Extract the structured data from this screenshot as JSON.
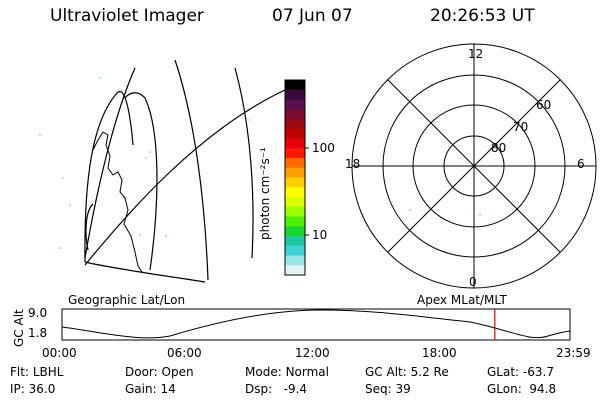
{
  "header": {
    "instrument": "Ultraviolet Imager",
    "date": "07 Jun 07",
    "time": "20:26:53 UT"
  },
  "colorbar": {
    "unit_label": "photon cm⁻²s⁻¹",
    "ticks": [
      "100",
      "10"
    ],
    "colors": [
      "#000000",
      "#3a0a3a",
      "#5a0f4e",
      "#7a0a30",
      "#9c0a10",
      "#c00000",
      "#e8000a",
      "#ff1a00",
      "#ff6a00",
      "#ff9e00",
      "#ffd000",
      "#ffff00",
      "#d8ff00",
      "#9cff00",
      "#4cf000",
      "#18d830",
      "#20c8a0",
      "#40d0d8",
      "#9ae6e6",
      "#e0f4f4"
    ]
  },
  "left_panel": {
    "label": "Geographic Lat/Lon"
  },
  "right_panel": {
    "label": "Apex MLat/MLT",
    "mlt_labels": {
      "top": "12",
      "left": "18",
      "right": "6",
      "bottom": "0"
    },
    "lat_labels": [
      "60",
      "70",
      "80"
    ]
  },
  "timeline": {
    "ylabel": "GC Alt",
    "ymax": "9.0",
    "ymin": "1.8",
    "xticks": [
      "00:00",
      "06:00",
      "12:00",
      "18:00",
      "23:59"
    ],
    "marker_time": "20:26:53",
    "marker_color": "#e00000"
  },
  "status": {
    "row1": [
      {
        "key": "Flt:",
        "value": "LBHL"
      },
      {
        "key": "Door:",
        "value": "Open"
      },
      {
        "key": "Mode:",
        "value": "Normal"
      },
      {
        "key": "GC Alt:",
        "value": "5.2 Re"
      },
      {
        "key": "GLat:",
        "value": "-63.7"
      }
    ],
    "row2": [
      {
        "key": "IP:",
        "value": "36.0"
      },
      {
        "key": "Gain:",
        "value": "14"
      },
      {
        "key": "Dsp:",
        "value": "-9.4"
      },
      {
        "key": "Seq:",
        "value": "39"
      },
      {
        "key": "GLon:",
        "value": "94.8"
      }
    ]
  }
}
